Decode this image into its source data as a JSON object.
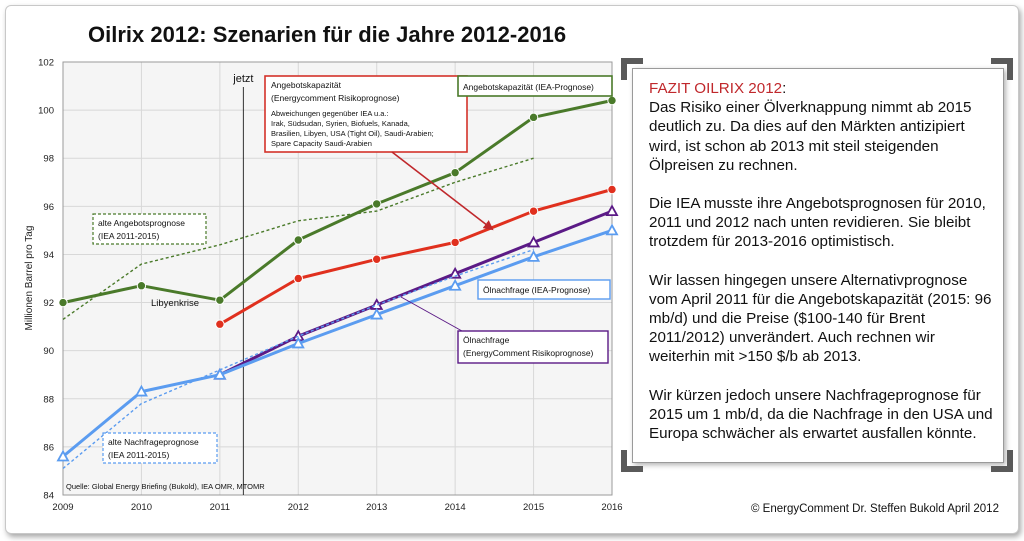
{
  "title": "Oilrix 2012: Szenarien für die Jahre 2012-2016",
  "copyright": "© EnergyComment Dr. Steffen Bukold April 2012",
  "fazit": {
    "heading": "FAZIT OILRIX 2012",
    "heading_suffix": ":",
    "intro": "Das Risiko einer Ölverknappung nimmt ab 2015 deutlich zu. Da dies auf den Märkten antizipiert wird, ist schon ab 2013 mit steil steigenden Ölpreisen zu rechnen.",
    "p2": "Die IEA musste ihre Angebotsprognosen für 2010, 2011 und 2012 nach unten revidieren. Sie bleibt trotzdem für 2013-2016 optimistisch.",
    "p3": "Wir lassen hingegen unsere Alternativprognose vom April 2011 für die Angebotskapazität (2015: 96 mb/d) und die Preise ($100-140 für Brent 2011/2012) unverändert. Auch rechnen wir weiterhin mit >150 $/b ab 2013.",
    "p4": "Wir kürzen jedoch unsere Nachfrageprognose für 2015 um 1 mb/d, da die Nachfrage in den USA und Europa schwächer als erwartet ausfallen könnte."
  },
  "colors": {
    "green": "#4a7a2a",
    "red": "#e0301e",
    "purple": "#5b1a86",
    "blue": "#5b9cf0",
    "grid": "#d8d8d8",
    "plot_bg": "#f5f5f5"
  },
  "chart_data": {
    "type": "line",
    "title": "Oilrix 2012: Szenarien für die Jahre 2012-2016",
    "ylabel": "Millionen Barrel pro Tag",
    "xlabel": "",
    "x": [
      2009,
      2010,
      2011,
      2012,
      2013,
      2014,
      2015,
      2016
    ],
    "x_ticks": [
      "2009",
      "2010",
      "2011",
      "2012",
      "2013",
      "2014",
      "2015",
      "2016"
    ],
    "ylim": [
      84,
      102
    ],
    "y_ticks": [
      84,
      86,
      88,
      90,
      92,
      94,
      96,
      98,
      100,
      102
    ],
    "grid": true,
    "series": [
      {
        "name": "Angebotskapazität (IEA-Prognose)",
        "style": "solid",
        "color": "#4a7a2a",
        "marker": "circle",
        "x": [
          2009,
          2010,
          2011,
          2012,
          2013,
          2014,
          2015,
          2016
        ],
        "values": [
          92.0,
          92.7,
          92.1,
          94.6,
          96.1,
          97.4,
          99.7,
          100.4
        ]
      },
      {
        "name": "alte Angebotsprognose (IEA 2011-2015)",
        "style": "dotted",
        "color": "#4a7a2a",
        "marker": "none",
        "x": [
          2009,
          2010,
          2011,
          2012,
          2013,
          2014,
          2015
        ],
        "values": [
          91.3,
          93.6,
          94.4,
          95.4,
          95.8,
          97.0,
          98.0
        ]
      },
      {
        "name": "Angebotskapazität (EnergyComment Risikoprognose)",
        "style": "solid",
        "color": "#e0301e",
        "marker": "circle",
        "x": [
          2011,
          2012,
          2013,
          2014,
          2015,
          2016
        ],
        "values": [
          91.1,
          93.0,
          93.8,
          94.5,
          95.8,
          96.7
        ]
      },
      {
        "name": "Ölnachfrage (EnergyComment Risikoprognose)",
        "style": "solid",
        "color": "#5b1a86",
        "marker": "triangle",
        "x": [
          2011,
          2012,
          2013,
          2014,
          2015,
          2016
        ],
        "values": [
          89.0,
          90.6,
          91.9,
          93.2,
          94.5,
          95.8
        ]
      },
      {
        "name": "Ölnachfrage (IEA-Prognose)",
        "style": "solid",
        "color": "#5b9cf0",
        "marker": "triangle",
        "x": [
          2009,
          2010,
          2011,
          2012,
          2013,
          2014,
          2015,
          2016
        ],
        "values": [
          85.6,
          88.3,
          89.0,
          90.3,
          91.5,
          92.7,
          93.9,
          95.0
        ]
      },
      {
        "name": "alte Nachfrageprognose (IEA 2011-2015)",
        "style": "dotted",
        "color": "#5b9cf0",
        "marker": "none",
        "x": [
          2009,
          2010,
          2011,
          2012,
          2013,
          2014,
          2015
        ],
        "values": [
          85.1,
          87.8,
          89.2,
          90.6,
          91.9,
          93.1,
          94.2
        ]
      }
    ],
    "annotations": {
      "jetzt": "jetzt",
      "jetzt_x": 2011.3,
      "libyenkrise": "Libyenkrise",
      "quelle": "Quelle: Global Energy Briefing (Bukold), IEA OMR, MTOMR",
      "callout_risk_supply": {
        "title": "Angebotskapazität",
        "subtitle": "(Energycomment Risikoprognose)",
        "note_l1": "Abweichungen gegenüber IEA u.a.:",
        "note_l2": "Irak, Südsudan, Syrien, Biofuels, Kanada,",
        "note_l3": "Brasilien, Libyen, USA (Tight Oil), Saudi-Arabien;",
        "note_l4": "Spare Capacity Saudi-Arabien"
      },
      "callout_iea_supply": "Angebotskapazität (IEA-Prognose)",
      "callout_old_supply_l1": "alte Angebotsprognose",
      "callout_old_supply_l2": "(IEA 2011-2015)",
      "callout_iea_demand": "Ölnachfrage (IEA-Prognose)",
      "callout_risk_demand_l1": "Ölnachfrage",
      "callout_risk_demand_l2": "(EnergyComment Risikoprognose)",
      "callout_old_demand_l1": "alte Nachfrageprognose",
      "callout_old_demand_l2": "(IEA 2011-2015)"
    }
  }
}
